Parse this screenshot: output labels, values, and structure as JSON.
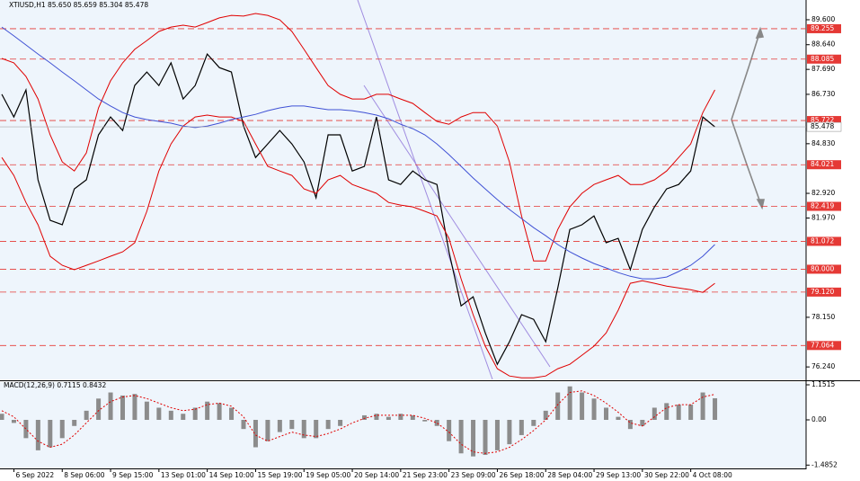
{
  "chart_data": [
    {
      "type": "line",
      "title": "XTIUSD,H1  85.650 85.659 85.304 85.478",
      "ylim": [
        75.76,
        90.36
      ],
      "yticks": [
        {
          "value": 89.6,
          "label": "89.600"
        },
        {
          "value": 88.64,
          "label": "88.640"
        },
        {
          "value": 87.69,
          "label": "87.690"
        },
        {
          "value": 86.73,
          "label": "86.730"
        },
        {
          "value": 84.83,
          "label": "84.830"
        },
        {
          "value": 82.92,
          "label": "82.920"
        },
        {
          "value": 81.97,
          "label": "81.970"
        },
        {
          "value": 78.15,
          "label": "78.150"
        },
        {
          "value": 76.24,
          "label": "76.240"
        }
      ],
      "levels": [
        89.255,
        88.085,
        85.722,
        84.021,
        82.419,
        81.072,
        {
          "value": 80,
          "label": "80.000"
        },
        {
          "value": 79.12,
          "label": "79.120"
        },
        77.064
      ],
      "level_color": "#e53935",
      "current_price": 85.478,
      "series": [
        {
          "color": "#000000",
          "values": [
            86.73,
            85.86,
            86.9,
            83.44,
            81.88,
            81.71,
            83.09,
            83.44,
            85.17,
            85.86,
            85.34,
            87.07,
            87.59,
            87.07,
            87.94,
            86.55,
            87.07,
            88.28,
            87.76,
            87.59,
            85.51,
            84.3,
            84.82,
            85.34,
            84.82,
            84.13,
            82.75,
            85.17,
            85.17,
            83.78,
            83.96,
            85.86,
            83.44,
            83.26,
            83.78,
            83.44,
            83.26,
            80.67,
            78.59,
            78.94,
            77.55,
            76.34,
            77.21,
            78.25,
            78.07,
            77.21,
            79.28,
            81.53,
            81.71,
            82.05,
            81.02,
            81.19,
            79.98,
            81.53,
            82.4,
            83.09,
            83.26,
            83.78,
            85.86,
            85.48
          ]
        },
        {
          "color": "#e00000",
          "values": [
            88.11,
            87.94,
            87.42,
            86.55,
            85.17,
            84.13,
            83.78,
            84.48,
            86.21,
            87.25,
            87.94,
            88.46,
            88.8,
            89.15,
            89.32,
            89.39,
            89.32,
            89.49,
            89.67,
            89.77,
            89.74,
            89.84,
            89.77,
            89.6,
            89.15,
            88.46,
            87.76,
            87.07,
            86.73,
            86.55,
            86.55,
            86.73,
            86.73,
            86.55,
            86.38,
            86.03,
            85.69,
            85.58,
            85.86,
            86.03,
            86.03,
            85.51,
            84.13,
            82.05,
            80.32,
            80.32,
            81.53,
            82.4,
            82.92,
            83.26,
            83.44,
            83.61,
            83.26,
            83.26,
            83.44,
            83.78,
            84.3,
            84.82,
            86.03,
            86.9
          ]
        },
        {
          "color": "#e00000",
          "values": [
            84.3,
            83.61,
            82.57,
            81.71,
            80.5,
            80.15,
            79.98,
            80.15,
            80.32,
            80.5,
            80.67,
            81.02,
            82.23,
            83.78,
            84.82,
            85.51,
            85.86,
            85.93,
            85.86,
            85.86,
            85.69,
            84.82,
            83.96,
            83.78,
            83.61,
            83.09,
            82.92,
            83.44,
            83.61,
            83.26,
            83.09,
            82.92,
            82.57,
            82.47,
            82.4,
            82.23,
            82.05,
            81.19,
            79.63,
            78.25,
            77.04,
            76.17,
            75.89,
            75.82,
            75.82,
            75.89,
            76.17,
            76.34,
            76.69,
            77.04,
            77.55,
            78.42,
            79.46,
            79.56,
            79.46,
            79.35,
            79.28,
            79.21,
            79.11,
            79.46
          ]
        },
        {
          "color": "#3f51d5",
          "values": [
            89.32,
            88.98,
            88.63,
            88.28,
            87.94,
            87.59,
            87.25,
            86.9,
            86.55,
            86.28,
            86.03,
            85.86,
            85.76,
            85.69,
            85.62,
            85.51,
            85.45,
            85.51,
            85.62,
            85.76,
            85.86,
            85.96,
            86.1,
            86.21,
            86.28,
            86.28,
            86.21,
            86.14,
            86.14,
            86.1,
            86.03,
            85.93,
            85.79,
            85.58,
            85.41,
            85.17,
            84.82,
            84.41,
            83.96,
            83.51,
            83.09,
            82.68,
            82.3,
            81.95,
            81.6,
            81.29,
            80.95,
            80.67,
            80.43,
            80.22,
            80.05,
            79.87,
            79.73,
            79.63,
            79.63,
            79.7,
            79.91,
            80.15,
            80.5,
            80.95
          ]
        }
      ]
    },
    {
      "type": "bar",
      "title": "MACD(12,26,9) 0.7115 0.8432",
      "ylim": [
        -1.86,
        1.27
      ],
      "yticks": [
        1.1515,
        {
          "value": 0,
          "label": "0.00"
        },
        -1.4852
      ],
      "categories": [
        null,
        "6 Sep 2022",
        null,
        null,
        null,
        "8 Sep 06:00",
        null,
        null,
        null,
        "9 Sep 15:00",
        null,
        null,
        null,
        "13 Sep 01:00",
        null,
        null,
        null,
        "14 Sep 10:00",
        null,
        null,
        null,
        "15 Sep 19:00",
        null,
        null,
        null,
        "19 Sep 05:00",
        null,
        null,
        null,
        "20 Sep 14:00",
        null,
        null,
        null,
        "21 Sep 23:00",
        null,
        null,
        null,
        "23 Sep 09:00",
        null,
        null,
        null,
        "26 Sep 18:00",
        null,
        null,
        null,
        "28 Sep 04:00",
        null,
        null,
        null,
        "29 Sep 13:00",
        null,
        null,
        null,
        "30 Sep 22:00",
        null,
        null,
        null,
        "4 Oct 08:00",
        null,
        null
      ],
      "series": [
        {
          "color": "#8c8c8c",
          "values": [
            0.2,
            -0.1,
            -0.6,
            -1.0,
            -0.9,
            -0.6,
            -0.2,
            0.3,
            0.7,
            0.9,
            0.8,
            0.85,
            0.6,
            0.4,
            0.3,
            0.2,
            0.4,
            0.6,
            0.55,
            0.4,
            -0.3,
            -0.9,
            -0.7,
            -0.4,
            -0.3,
            -0.6,
            -0.6,
            -0.3,
            -0.2,
            0.0,
            0.15,
            0.2,
            0.1,
            0.2,
            0.15,
            -0.05,
            -0.2,
            -0.7,
            -1.1,
            -1.2,
            -1.15,
            -1.0,
            -0.8,
            -0.5,
            -0.2,
            0.3,
            0.9,
            1.1,
            0.9,
            0.7,
            0.4,
            0.1,
            -0.3,
            -0.2,
            0.4,
            0.55,
            0.5,
            0.5,
            0.9,
            0.71
          ]
        },
        {
          "color": "#e00000",
          "values": [
            0.3,
            0.1,
            -0.3,
            -0.7,
            -0.9,
            -0.8,
            -0.5,
            -0.1,
            0.3,
            0.6,
            0.75,
            0.8,
            0.7,
            0.55,
            0.4,
            0.3,
            0.35,
            0.5,
            0.55,
            0.45,
            0.1,
            -0.5,
            -0.7,
            -0.55,
            -0.4,
            -0.5,
            -0.55,
            -0.45,
            -0.3,
            -0.1,
            0.05,
            0.15,
            0.15,
            0.15,
            0.15,
            0.05,
            -0.1,
            -0.4,
            -0.8,
            -1.05,
            -1.1,
            -1.05,
            -0.9,
            -0.65,
            -0.35,
            0.0,
            0.5,
            0.9,
            0.95,
            0.8,
            0.55,
            0.25,
            -0.1,
            -0.2,
            0.1,
            0.4,
            0.5,
            0.5,
            0.75,
            0.84
          ]
        }
      ]
    }
  ]
}
